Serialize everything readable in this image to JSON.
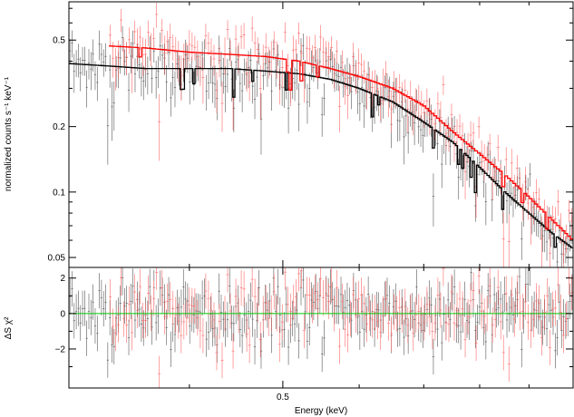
{
  "chart_data": [
    {
      "type": "scatter",
      "panel": "spectrum",
      "ylabel": "normalized counts s⁻¹ keV⁻¹",
      "yscale": "log",
      "xscale": "log",
      "xlim": [
        0.3,
        1.0
      ],
      "ylim": [
        0.045,
        0.75
      ],
      "yticks": [
        0.05,
        0.1,
        0.2,
        0.5
      ],
      "ytick_labels": [
        "0.05",
        "0.1",
        "0.2",
        "0.5"
      ],
      "grid": false,
      "series": [
        {
          "color": "#000000",
          "style": "data points with error bars, step-function model",
          "model_x": [
            0.3,
            0.33,
            0.36,
            0.4,
            0.44,
            0.48,
            0.52,
            0.56,
            0.6,
            0.65,
            0.7,
            0.75,
            0.8,
            0.85,
            0.9,
            0.95,
            1.0
          ],
          "model_y": [
            0.39,
            0.38,
            0.37,
            0.37,
            0.37,
            0.36,
            0.35,
            0.33,
            0.3,
            0.26,
            0.21,
            0.17,
            0.13,
            0.1,
            0.08,
            0.065,
            0.055
          ]
        },
        {
          "color": "#ff0000",
          "style": "data points with error bars, step-function model",
          "model_x": [
            0.33,
            0.36,
            0.4,
            0.44,
            0.48,
            0.52,
            0.56,
            0.6,
            0.65,
            0.7,
            0.75,
            0.8,
            0.85,
            0.9,
            0.95,
            1.0
          ],
          "model_y": [
            0.47,
            0.46,
            0.44,
            0.43,
            0.42,
            0.4,
            0.37,
            0.34,
            0.3,
            0.25,
            0.19,
            0.15,
            0.12,
            0.095,
            0.075,
            0.06
          ]
        }
      ]
    },
    {
      "type": "scatter",
      "panel": "residuals",
      "ylabel": "ΔS χ²",
      "xlabel": "Energy (keV)",
      "xscale": "log",
      "xlim": [
        0.3,
        1.0
      ],
      "ylim": [
        -4.2,
        2.6
      ],
      "yticks": [
        -2,
        0,
        2
      ],
      "ytick_labels": [
        "−2",
        "0",
        "2"
      ],
      "xticks": [
        0.5
      ],
      "xtick_labels": [
        "0.5"
      ],
      "reference_line": {
        "y": 0,
        "color": "#00cc00"
      },
      "series": [
        {
          "color": "#000000"
        },
        {
          "color": "#ff0000"
        }
      ]
    }
  ]
}
